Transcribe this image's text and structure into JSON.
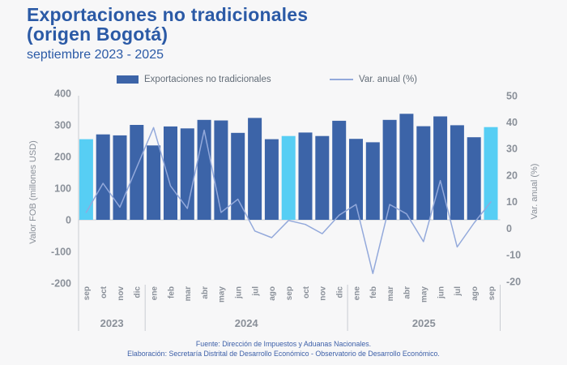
{
  "header": {
    "title_line1": "Exportaciones no tradicionales",
    "title_line2": "(origen Bogotá)",
    "subtitle": "septiembre 2023 - 2025"
  },
  "footer": {
    "source": "Fuente: Dirección de Impuestos y Aduanas Nacionales.",
    "elaboration": "Elaboración: Secretaría Distrital de Desarrollo Económico - Observatorio de Desarrollo Económico."
  },
  "palette": {
    "background": "#f7f7f8",
    "title_blue": "#2b5aa6",
    "bar_blue": "#3c64a8",
    "highlight_cyan": "#57cef4",
    "line_blue": "#93a9db",
    "axis_text": "#8a9099",
    "legend_text": "#636d78",
    "footer_blue": "#3c5fa8",
    "grid": "#c9ccd2"
  },
  "chart_data": {
    "type": "bar+line",
    "title": "Exportaciones no tradicionales (origen Bogotá)",
    "subtitle": "septiembre 2023 - 2025",
    "categories": [
      "sep",
      "oct",
      "nov",
      "dic",
      "ene",
      "feb",
      "mar",
      "abr",
      "may",
      "jun",
      "jul",
      "ago",
      "sep",
      "oct",
      "nov",
      "dic",
      "ene",
      "feb",
      "mar",
      "abr",
      "may",
      "jun",
      "jul",
      "ago",
      "sep"
    ],
    "year_groups": [
      {
        "label": "2023",
        "start": 0,
        "count": 4
      },
      {
        "label": "2024",
        "start": 4,
        "count": 12
      },
      {
        "label": "2025",
        "start": 16,
        "count": 9
      }
    ],
    "series": [
      {
        "name": "Exportaciones no tradicionales",
        "type": "bar",
        "axis": "left",
        "color": "#3c64a8",
        "highlight_color": "#57cef4",
        "highlight_indices": [
          0,
          12,
          24
        ],
        "values": [
          255,
          270,
          267,
          300,
          235,
          295,
          289,
          316,
          314,
          275,
          322,
          255,
          265,
          276,
          265,
          313,
          256,
          245,
          316,
          335,
          296,
          327,
          299,
          261,
          293
        ]
      },
      {
        "name": "Var. anual (%)",
        "type": "line",
        "axis": "right",
        "color": "#93a9db",
        "values": [
          6,
          17,
          8,
          23,
          38,
          16,
          7.5,
          37,
          6,
          11,
          -1,
          -3.5,
          3,
          1.5,
          -2,
          5,
          9,
          -17,
          9,
          5.5,
          -5,
          18,
          -7,
          2,
          10
        ]
      }
    ],
    "left_axis": {
      "label": "Valor FOB (millones USD)",
      "min": -200,
      "max": 400,
      "ticks": [
        400,
        300,
        200,
        100,
        0,
        -100,
        -200
      ]
    },
    "right_axis": {
      "label": "Var. anual (%)",
      "min": -20,
      "max": 50,
      "ticks": [
        50,
        40,
        30,
        20,
        10,
        0,
        -10,
        -20
      ]
    },
    "grid": "off",
    "legend_position": "top"
  }
}
